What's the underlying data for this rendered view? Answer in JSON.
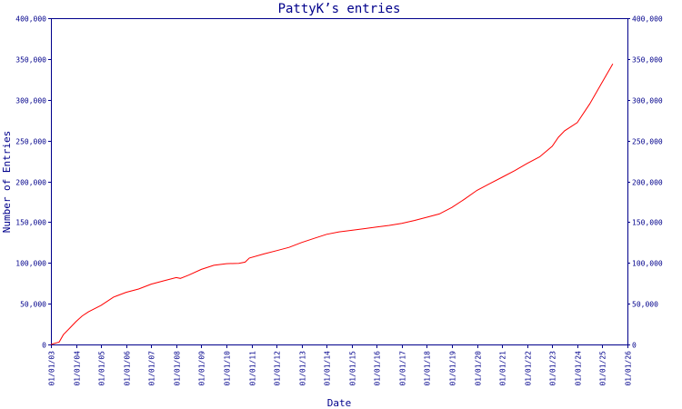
{
  "chart_data": {
    "type": "line",
    "title": "PattyK’s entries",
    "xlabel": "Date",
    "ylabel": "Number of Entries",
    "xlim": [
      "2003-01-01",
      "2026-01-01"
    ],
    "ylim": [
      0,
      400000
    ],
    "grid": false,
    "y_ticks": [
      0,
      50000,
      100000,
      150000,
      200000,
      250000,
      300000,
      350000,
      400000
    ],
    "y_tick_labels": [
      "0",
      "50,000",
      "100,000",
      "150,000",
      "200,000",
      "250,000",
      "300,000",
      "350,000",
      "400,000"
    ],
    "x_ticks": [
      "2003-01-01",
      "2004-01-01",
      "2005-01-01",
      "2006-01-01",
      "2007-01-01",
      "2008-01-01",
      "2009-01-01",
      "2010-01-01",
      "2011-01-01",
      "2012-01-01",
      "2013-01-01",
      "2014-01-01",
      "2015-01-01",
      "2016-01-01",
      "2017-01-01",
      "2018-01-01",
      "2019-01-01",
      "2020-01-01",
      "2021-01-01",
      "2022-01-01",
      "2023-01-01",
      "2024-01-01",
      "2025-01-01",
      "2026-01-01"
    ],
    "x_tick_labels": [
      "01/01/03",
      "01/01/04",
      "01/01/05",
      "01/01/06",
      "01/01/07",
      "01/01/08",
      "01/01/09",
      "01/01/10",
      "01/01/11",
      "01/01/12",
      "01/01/13",
      "01/01/14",
      "01/01/15",
      "01/01/16",
      "01/01/17",
      "01/01/18",
      "01/01/19",
      "01/01/20",
      "01/01/21",
      "01/01/22",
      "01/01/23",
      "01/01/24",
      "01/01/25",
      "01/01/26"
    ],
    "series": [
      {
        "color": "#ff0000",
        "points": [
          [
            "2003-01-01",
            0
          ],
          [
            "2003-05-01",
            3000
          ],
          [
            "2003-07-01",
            12000
          ],
          [
            "2003-10-01",
            20000
          ],
          [
            "2004-01-01",
            28000
          ],
          [
            "2004-04-01",
            35000
          ],
          [
            "2004-07-01",
            40000
          ],
          [
            "2005-01-01",
            48000
          ],
          [
            "2005-07-01",
            58000
          ],
          [
            "2006-01-01",
            64000
          ],
          [
            "2006-07-01",
            68000
          ],
          [
            "2007-01-01",
            74000
          ],
          [
            "2007-07-01",
            78000
          ],
          [
            "2008-01-01",
            82000
          ],
          [
            "2008-03-01",
            81000
          ],
          [
            "2008-07-01",
            85000
          ],
          [
            "2009-01-01",
            92000
          ],
          [
            "2009-07-01",
            97000
          ],
          [
            "2010-01-01",
            99000
          ],
          [
            "2010-07-01",
            99500
          ],
          [
            "2010-10-01",
            101000
          ],
          [
            "2010-12-01",
            106000
          ],
          [
            "2011-07-01",
            111000
          ],
          [
            "2012-01-01",
            115000
          ],
          [
            "2012-07-01",
            119000
          ],
          [
            "2013-01-01",
            125000
          ],
          [
            "2013-07-01",
            130000
          ],
          [
            "2014-01-01",
            135000
          ],
          [
            "2014-07-01",
            138000
          ],
          [
            "2015-01-01",
            140000
          ],
          [
            "2015-07-01",
            142000
          ],
          [
            "2016-01-01",
            144000
          ],
          [
            "2016-07-01",
            146000
          ],
          [
            "2017-01-01",
            148500
          ],
          [
            "2017-07-01",
            152000
          ],
          [
            "2018-01-01",
            156000
          ],
          [
            "2018-07-01",
            160000
          ],
          [
            "2019-01-01",
            168000
          ],
          [
            "2019-07-01",
            178000
          ],
          [
            "2020-01-01",
            189000
          ],
          [
            "2020-07-01",
            197000
          ],
          [
            "2021-01-01",
            205000
          ],
          [
            "2021-07-01",
            213000
          ],
          [
            "2022-01-01",
            222000
          ],
          [
            "2022-07-01",
            230000
          ],
          [
            "2023-01-01",
            243000
          ],
          [
            "2023-04-01",
            254000
          ],
          [
            "2023-07-01",
            262000
          ],
          [
            "2024-01-01",
            272000
          ],
          [
            "2024-07-01",
            295000
          ],
          [
            "2025-01-01",
            322000
          ],
          [
            "2025-06-01",
            344000
          ]
        ]
      }
    ]
  }
}
